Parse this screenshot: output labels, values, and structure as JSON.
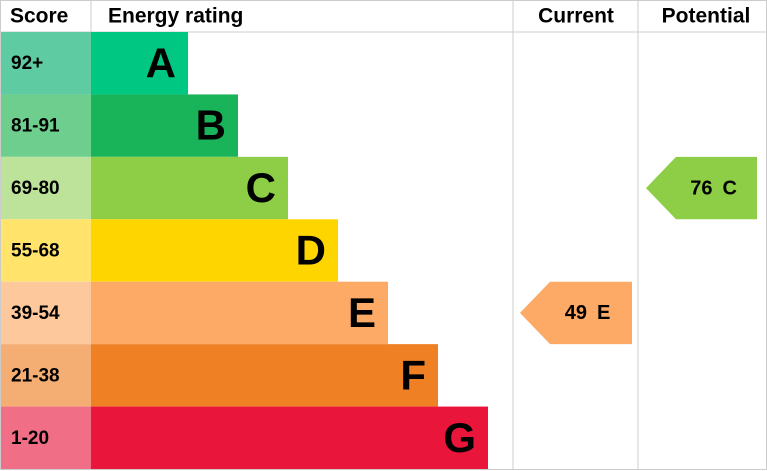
{
  "chart_data": {
    "type": "epc",
    "headers": {
      "score": "Score",
      "rating": "Energy rating",
      "current": "Current",
      "potential": "Potential"
    },
    "bands": [
      {
        "score": "92+",
        "letter": "A",
        "color": "#00c781",
        "score_color": "#5fcba2"
      },
      {
        "score": "81-91",
        "letter": "B",
        "color": "#19b459",
        "score_color": "#6dce8e"
      },
      {
        "score": "69-80",
        "letter": "C",
        "color": "#8dce46",
        "score_color": "#bde29a"
      },
      {
        "score": "55-68",
        "letter": "D",
        "color": "#ffd500",
        "score_color": "#ffe36a"
      },
      {
        "score": "39-54",
        "letter": "E",
        "color": "#fcaa65",
        "score_color": "#fdc89c"
      },
      {
        "score": "21-38",
        "letter": "F",
        "color": "#ef8023",
        "score_color": "#f4ad72"
      },
      {
        "score": "1-20",
        "letter": "G",
        "color": "#e9153b",
        "score_color": "#f06f87"
      }
    ],
    "current": {
      "value": 49,
      "letter": "E"
    },
    "potential": {
      "value": 76,
      "letter": "C"
    }
  }
}
